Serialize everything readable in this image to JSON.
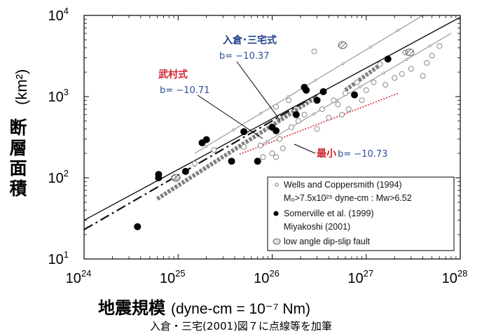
{
  "chart_data": {
    "type": "scatter",
    "x_scale": "log",
    "y_scale": "log",
    "xlim": [
      1e+24,
      1e+28
    ],
    "ylim": [
      10,
      10000
    ],
    "x_ticks": [
      {
        "value": 1e+24,
        "base": "10",
        "exp": "24"
      },
      {
        "value": 1e+25,
        "base": "10",
        "exp": "25"
      },
      {
        "value": 1e+26,
        "base": "10",
        "exp": "26"
      },
      {
        "value": 1e+27,
        "base": "10",
        "exp": "27"
      },
      {
        "value": 1e+28,
        "base": "10",
        "exp": "28"
      }
    ],
    "y_ticks": [
      {
        "value": 10,
        "base": "10",
        "exp": "1"
      },
      {
        "value": 100,
        "base": "10",
        "exp": "2"
      },
      {
        "value": 1000,
        "base": "10",
        "exp": "3"
      },
      {
        "value": 10000,
        "base": "10",
        "exp": "4"
      }
    ],
    "ylabel_jp": [
      "断",
      "層",
      "面",
      "積"
    ],
    "ylabel_unit": "(km²)",
    "xlabel_jp": "地震規模",
    "xlabel_unit": "(dyne-cm = 10⁻⁷ Nm)",
    "caption": "入倉・三宅(2001)図７に点線等を加筆",
    "annotations": {
      "irikura": {
        "name": "入倉･三宅式",
        "value": "b= −10.37"
      },
      "takemura": {
        "name": "武村式",
        "value": "b= −10.71"
      },
      "minimum": {
        "name": "最小",
        "value": "b= −10.73"
      }
    },
    "legend": {
      "position": "bottom-right",
      "items": [
        {
          "marker": "dot-small-open",
          "lines": [
            "Wells and Coppersmith (1994)",
            "M₀>7.5x10²⁵ dyne-cm : Mw>6.52"
          ]
        },
        {
          "marker": "filled",
          "lines": [
            "Somerville et al. (1999)",
            "Miyakoshi (2001)"
          ]
        },
        {
          "marker": "hatched-open",
          "lines": [
            "low angle dip-slip fault"
          ]
        }
      ]
    },
    "lines": [
      {
        "style": "solid",
        "points": [
          [
            1e+24,
            30
          ],
          [
            1e+28,
            9500
          ]
        ]
      },
      {
        "style": "dashdot",
        "points": [
          [
            1e+24,
            23
          ],
          [
            3e+26,
            1050
          ]
        ]
      },
      {
        "style": "gray-thin",
        "points": [
          [
            1.5e+25,
            200
          ],
          [
            4e+27,
            10000
          ]
        ]
      },
      {
        "style": "gray-thin",
        "points": [
          [
            7e+25,
            240
          ],
          [
            8e+27,
            6000
          ]
        ]
      },
      {
        "style": "red-dotted",
        "points": [
          [
            4.5e+25,
            195
          ],
          [
            2.2e+27,
            1100
          ]
        ]
      },
      {
        "style": "hatched-band",
        "points": [
          [
            6e+24,
            55
          ],
          [
            3e+26,
            1000
          ]
        ]
      },
      {
        "style": "hatched-band",
        "points": [
          [
            6e+26,
            1200
          ],
          [
            1.5e+27,
            2600
          ]
        ]
      }
    ],
    "series": [
      {
        "marker": "filled",
        "points": [
          [
            3.7e+24,
            25
          ],
          [
            6.2e+24,
            110
          ],
          [
            6.2e+24,
            100
          ],
          [
            1.2e+25,
            120
          ],
          [
            1.8e+25,
            270
          ],
          [
            2e+25,
            295
          ],
          [
            3.7e+25,
            160
          ],
          [
            5e+25,
            370
          ],
          [
            7e+25,
            160
          ],
          [
            1e+26,
            420
          ],
          [
            1.1e+26,
            380
          ],
          [
            1.8e+26,
            600
          ],
          [
            2.2e+26,
            1300
          ],
          [
            2.3e+26,
            1200
          ],
          [
            3e+26,
            900
          ],
          [
            3.5e+26,
            1150
          ],
          [
            7.5e+26,
            1050
          ],
          [
            1.7e+27,
            2900
          ]
        ]
      },
      {
        "marker": "open",
        "points": [
          [
            9e+24,
            100
          ],
          [
            1.5e+25,
            150
          ],
          [
            2.4e+25,
            220
          ],
          [
            5e+25,
            240
          ],
          [
            7.5e+25,
            250
          ],
          [
            8e+25,
            180
          ],
          [
            1e+26,
            200
          ],
          [
            1.1e+26,
            180
          ],
          [
            1.2e+26,
            300
          ],
          [
            1.3e+26,
            230
          ],
          [
            1.6e+26,
            420
          ],
          [
            1.9e+26,
            500
          ],
          [
            2.2e+26,
            600
          ],
          [
            3e+26,
            400
          ],
          [
            3.4e+26,
            700
          ],
          [
            4e+26,
            550
          ],
          [
            4.5e+26,
            900
          ],
          [
            5e+26,
            800
          ],
          [
            5.5e+26,
            600
          ],
          [
            6e+26,
            1100
          ],
          [
            6.5e+26,
            700
          ],
          [
            8e+26,
            1500
          ],
          [
            9e+26,
            900
          ],
          [
            1e+27,
            1200
          ],
          [
            1.2e+27,
            1500
          ],
          [
            1.4e+27,
            2500
          ],
          [
            1.6e+27,
            1400
          ],
          [
            2e+27,
            1700
          ],
          [
            2.4e+27,
            1900
          ],
          [
            2.6e+27,
            3500
          ],
          [
            3e+27,
            2200
          ],
          [
            4e+27,
            1800
          ],
          [
            4.4e+27,
            2600
          ],
          [
            5e+27,
            3200
          ],
          [
            6e+27,
            4200
          ],
          [
            1.1e+26,
            750
          ],
          [
            1.5e+26,
            900
          ],
          [
            2.8e+26,
            3600
          ]
        ]
      },
      {
        "marker": "hatched-open",
        "points": [
          [
            9.5e+24,
            100
          ],
          [
            5.6e+26,
            4300
          ],
          [
            2.9e+27,
            3500
          ]
        ]
      }
    ]
  }
}
